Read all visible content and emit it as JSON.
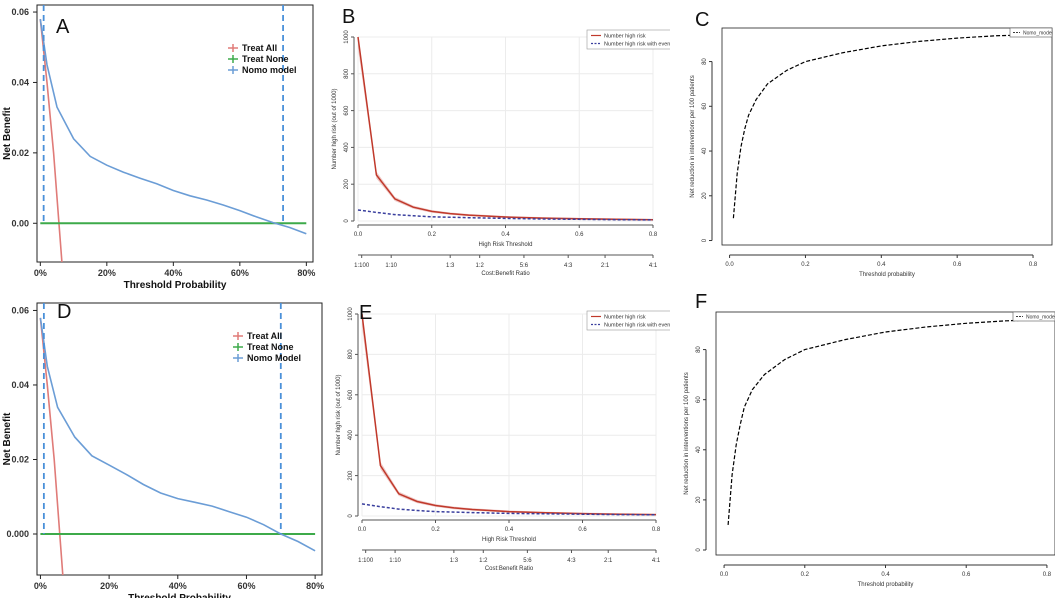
{
  "chart_data": [
    {
      "id": "A",
      "panel_label": "A",
      "type": "line",
      "title": "",
      "xlabel": "Threshold Probability",
      "ylabel": "Net Benefit",
      "x_ticks": [
        0,
        0.2,
        0.4,
        0.6,
        0.8
      ],
      "x_tick_labels": [
        "0%",
        "20%",
        "40%",
        "60%",
        "80%"
      ],
      "y_ticks": [
        0,
        0.02,
        0.04,
        0.06
      ],
      "y_tick_labels": [
        "0.00",
        "0.02",
        "0.04",
        "0.06"
      ],
      "xlim": [
        -0.01,
        0.82
      ],
      "ylim": [
        -0.011,
        0.062
      ],
      "legend": {
        "position": "top-right",
        "entries": [
          "Treat All",
          "Treat None",
          "Nomo model"
        ]
      },
      "series": [
        {
          "name": "Treat All",
          "color": "#e07b78",
          "x": [
            0,
            0.02,
            0.04,
            0.065
          ],
          "y": [
            0.058,
            0.04,
            0.02,
            -0.011
          ]
        },
        {
          "name": "Treat None",
          "color": "#3daa4a",
          "x": [
            0,
            0.8
          ],
          "y": [
            0,
            0
          ]
        },
        {
          "name": "Nomo model",
          "color": "#6b9dd6",
          "x": [
            0,
            0.02,
            0.05,
            0.1,
            0.15,
            0.2,
            0.25,
            0.3,
            0.35,
            0.4,
            0.45,
            0.5,
            0.55,
            0.6,
            0.65,
            0.7,
            0.75,
            0.8
          ],
          "y": [
            0.058,
            0.045,
            0.033,
            0.024,
            0.019,
            0.0165,
            0.0145,
            0.0128,
            0.0112,
            0.0093,
            0.0078,
            0.0066,
            0.0052,
            0.0036,
            0.0018,
            0.0002,
            -0.0012,
            -0.003
          ]
        }
      ],
      "ref_lines": [
        {
          "x": 0.01
        },
        {
          "x": 0.73
        }
      ]
    },
    {
      "id": "B",
      "panel_label": "B",
      "type": "line",
      "title": "",
      "xlabel": "High Risk Threshold",
      "ylabel": "Number high risk (out of 1000)",
      "secondary_xlabel": "Cost:Benefit Ratio",
      "x_ticks": [
        0,
        0.2,
        0.4,
        0.6,
        0.8
      ],
      "x_tick_labels": [
        "0.0",
        "0.2",
        "0.4",
        "0.6",
        "0.8"
      ],
      "y_ticks": [
        0,
        200,
        400,
        600,
        800,
        1000
      ],
      "y_tick_labels": [
        "0",
        "200",
        "400",
        "600",
        "800",
        "1000"
      ],
      "xlim": [
        0,
        0.8
      ],
      "ylim": [
        0,
        1000
      ],
      "cost_benefit_labels": [
        "1:100",
        "1:10",
        "1:3",
        "1:2",
        "5:6",
        "4:3",
        "2:1",
        "4:1"
      ],
      "cost_benefit_positions": [
        0.01,
        0.09,
        0.25,
        0.33,
        0.45,
        0.57,
        0.67,
        0.8
      ],
      "legend": {
        "position": "top-right",
        "entries": [
          "Number high risk",
          "Number high risk with event"
        ]
      },
      "series": [
        {
          "name": "Number high risk",
          "color": "#c0392b",
          "x": [
            0,
            0.05,
            0.1,
            0.15,
            0.2,
            0.25,
            0.3,
            0.4,
            0.5,
            0.6,
            0.7,
            0.8
          ],
          "y": [
            1000,
            250,
            120,
            75,
            52,
            40,
            32,
            22,
            16,
            12,
            9,
            7
          ]
        },
        {
          "name": "Number high risk with event",
          "color": "#3a3f9e",
          "x": [
            0,
            0.05,
            0.1,
            0.15,
            0.2,
            0.3,
            0.4,
            0.5,
            0.6,
            0.7,
            0.8
          ],
          "y": [
            60,
            47,
            35,
            28,
            23,
            18,
            14,
            11,
            9,
            7,
            6
          ]
        }
      ]
    },
    {
      "id": "C",
      "panel_label": "C",
      "type": "line",
      "title": "",
      "xlabel": "Threshold probability",
      "ylabel": "Net reduction in interventions per 100 patients",
      "x_ticks": [
        0,
        0.2,
        0.4,
        0.6,
        0.8
      ],
      "x_tick_labels": [
        "0.0",
        "0.2",
        "0.4",
        "0.6",
        "0.8"
      ],
      "y_ticks": [
        0,
        20,
        40,
        60,
        80
      ],
      "y_tick_labels": [
        "0",
        "20",
        "40",
        "60",
        "80"
      ],
      "xlim": [
        -0.02,
        0.85
      ],
      "ylim": [
        -2,
        95
      ],
      "legend": {
        "position": "top-right",
        "entries": [
          "Nomo_model"
        ]
      },
      "series": [
        {
          "name": "Nomo_model",
          "color": "#000000",
          "x": [
            0.01,
            0.02,
            0.03,
            0.04,
            0.05,
            0.07,
            0.1,
            0.15,
            0.2,
            0.3,
            0.4,
            0.5,
            0.6,
            0.7,
            0.8
          ],
          "y": [
            10,
            30,
            42,
            50,
            56,
            63,
            70,
            76,
            80,
            84,
            87,
            89,
            90.5,
            91.5,
            92
          ]
        }
      ]
    },
    {
      "id": "D",
      "panel_label": "D",
      "type": "line",
      "title": "",
      "xlabel": "Threshold Probability",
      "ylabel": "Net Benefit",
      "x_ticks": [
        0,
        0.2,
        0.4,
        0.6,
        0.8
      ],
      "x_tick_labels": [
        "0%",
        "20%",
        "40%",
        "60%",
        "80%"
      ],
      "y_ticks": [
        0,
        0.02,
        0.04,
        0.06
      ],
      "y_tick_labels": [
        "0.000",
        "0.02",
        "0.04",
        "0.06"
      ],
      "xlim": [
        -0.01,
        0.82
      ],
      "ylim": [
        -0.011,
        0.062
      ],
      "legend": {
        "position": "top-right",
        "entries": [
          "Treat All",
          "Treat None",
          "Nomo Model"
        ]
      },
      "series": [
        {
          "name": "Treat All",
          "color": "#e07b78",
          "x": [
            0,
            0.02,
            0.04,
            0.065
          ],
          "y": [
            0.058,
            0.04,
            0.02,
            -0.011
          ]
        },
        {
          "name": "Treat None",
          "color": "#3daa4a",
          "x": [
            0,
            0.8
          ],
          "y": [
            0,
            0
          ]
        },
        {
          "name": "Nomo Model",
          "color": "#6b9dd6",
          "x": [
            0,
            0.02,
            0.05,
            0.1,
            0.15,
            0.2,
            0.25,
            0.3,
            0.35,
            0.4,
            0.45,
            0.5,
            0.55,
            0.6,
            0.65,
            0.7,
            0.75,
            0.8
          ],
          "y": [
            0.058,
            0.045,
            0.034,
            0.026,
            0.021,
            0.0185,
            0.016,
            0.0133,
            0.011,
            0.0095,
            0.0085,
            0.0075,
            0.006,
            0.0045,
            0.0025,
            0.0,
            -0.002,
            -0.0045
          ]
        }
      ],
      "ref_lines": [
        {
          "x": 0.01
        },
        {
          "x": 0.7
        }
      ]
    },
    {
      "id": "E",
      "panel_label": "E",
      "type": "line",
      "title": "",
      "xlabel": "High Risk Threshold",
      "ylabel": "Number high risk (out of 1000)",
      "secondary_xlabel": "Cost:Benefit Ratio",
      "x_ticks": [
        0,
        0.2,
        0.4,
        0.6,
        0.8
      ],
      "x_tick_labels": [
        "0.0",
        "0.2",
        "0.4",
        "0.6",
        "0.8"
      ],
      "y_ticks": [
        0,
        200,
        400,
        600,
        800,
        1000
      ],
      "y_tick_labels": [
        "0",
        "200",
        "400",
        "600",
        "800",
        "1000"
      ],
      "xlim": [
        0,
        0.8
      ],
      "ylim": [
        0,
        1000
      ],
      "cost_benefit_labels": [
        "1:100",
        "1:10",
        "1:3",
        "1:2",
        "5:6",
        "4:3",
        "2:1",
        "4:1"
      ],
      "cost_benefit_positions": [
        0.01,
        0.09,
        0.25,
        0.33,
        0.45,
        0.57,
        0.67,
        0.8
      ],
      "legend": {
        "position": "top-right",
        "entries": [
          "Number high risk",
          "Number high risk with event"
        ]
      },
      "series": [
        {
          "name": "Number high risk",
          "color": "#c0392b",
          "x": [
            0,
            0.05,
            0.1,
            0.15,
            0.2,
            0.25,
            0.3,
            0.4,
            0.5,
            0.6,
            0.7,
            0.8
          ],
          "y": [
            1000,
            250,
            110,
            72,
            52,
            40,
            32,
            22,
            16,
            12,
            9,
            7
          ]
        },
        {
          "name": "Number high risk with event",
          "color": "#3a3f9e",
          "x": [
            0,
            0.05,
            0.1,
            0.15,
            0.2,
            0.3,
            0.4,
            0.5,
            0.6,
            0.7,
            0.8
          ],
          "y": [
            60,
            46,
            34,
            27,
            22,
            17,
            13,
            11,
            9,
            7,
            6
          ]
        }
      ]
    },
    {
      "id": "F",
      "panel_label": "F",
      "type": "line",
      "title": "",
      "xlabel": "Threshold probability",
      "ylabel": "Net reduction in interventions per 100 patients",
      "x_ticks": [
        0,
        0.2,
        0.4,
        0.6,
        0.8
      ],
      "x_tick_labels": [
        "0.0",
        "0.2",
        "0.4",
        "0.6",
        "0.8"
      ],
      "y_ticks": [
        0,
        20,
        40,
        60,
        80
      ],
      "y_tick_labels": [
        "0",
        "20",
        "40",
        "60",
        "80"
      ],
      "xlim": [
        -0.02,
        0.82
      ],
      "ylim": [
        -2,
        95
      ],
      "legend": {
        "position": "top-right",
        "entries": [
          "Nomo_model"
        ]
      },
      "series": [
        {
          "name": "Nomo_model",
          "color": "#000000",
          "x": [
            0.01,
            0.02,
            0.03,
            0.04,
            0.05,
            0.07,
            0.1,
            0.15,
            0.2,
            0.3,
            0.4,
            0.5,
            0.6,
            0.7,
            0.8
          ],
          "y": [
            10,
            30,
            42,
            50,
            57,
            64,
            70,
            76,
            80,
            84,
            87,
            89,
            90.5,
            91.5,
            92
          ]
        }
      ]
    }
  ],
  "colors": {
    "treat_all": "#e07b78",
    "treat_none": "#3daa4a",
    "nomo": "#6b9dd6",
    "ref_line": "#4a90d9",
    "risk": "#c0392b",
    "risk_band": "#e8b4b0",
    "event": "#3a3f9e",
    "curve": "#000000",
    "grid": "#ececec"
  }
}
